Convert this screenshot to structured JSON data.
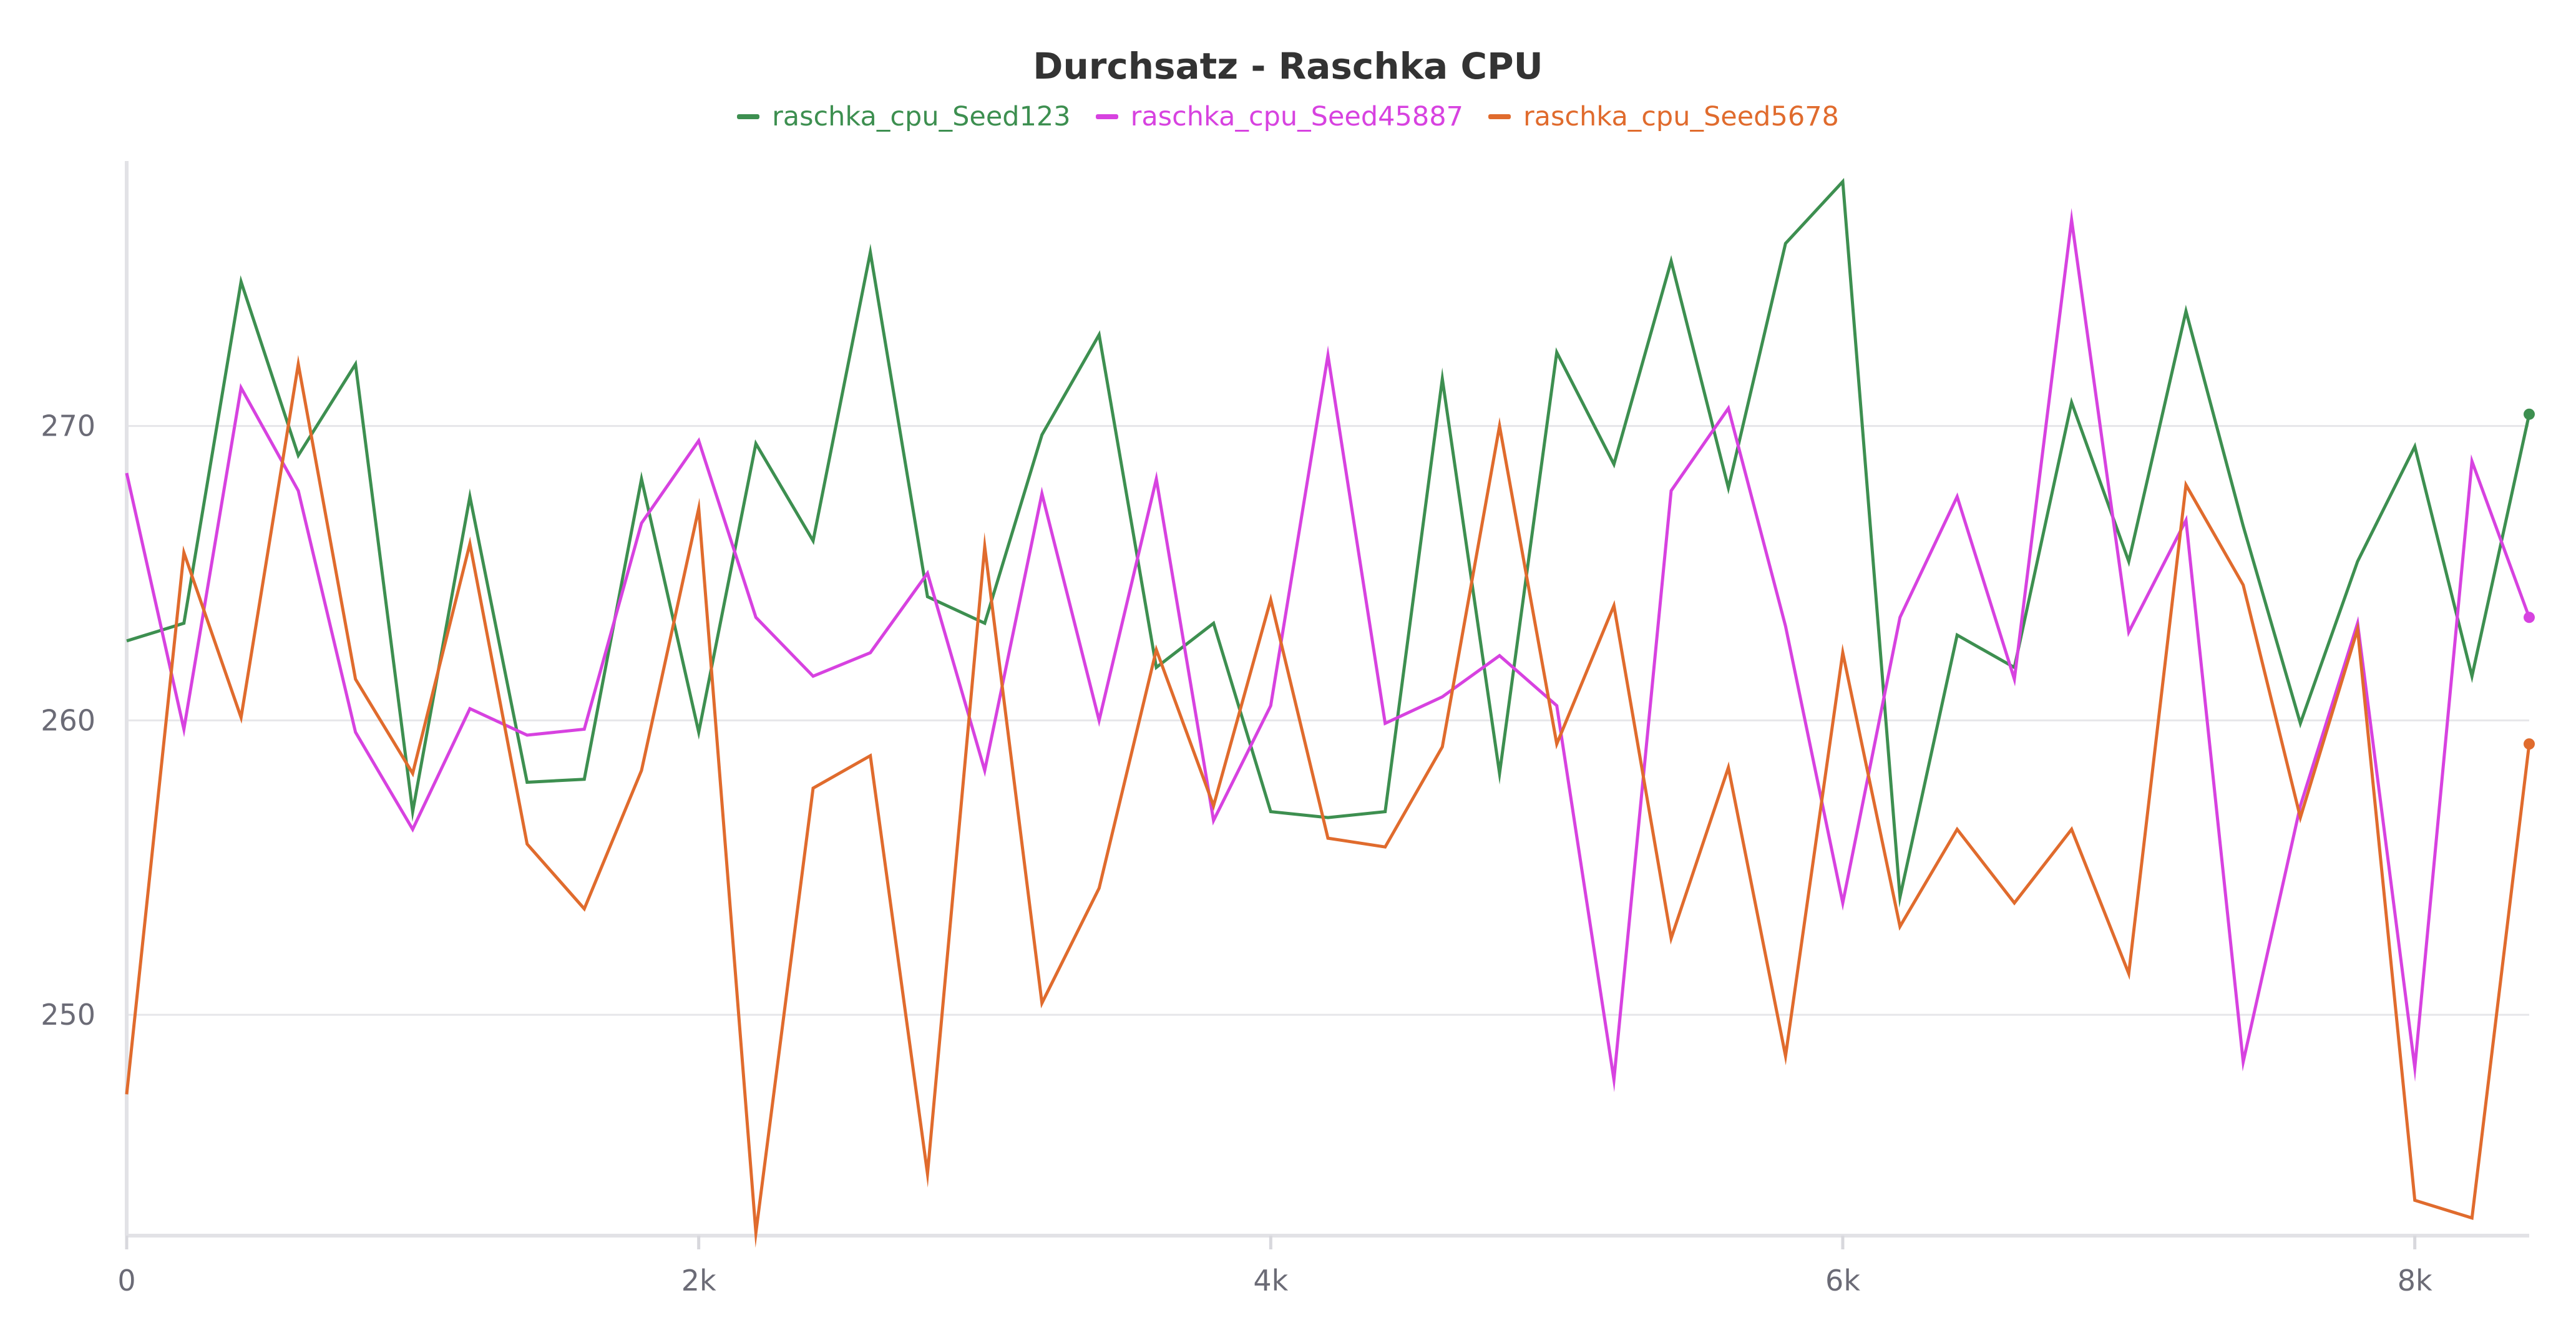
{
  "chart_data": {
    "type": "line",
    "title": "Durchsatz - Raschka CPU",
    "xlabel": "",
    "ylabel": "",
    "xlim": [
      0,
      8400
    ],
    "ylim": [
      242.5,
      279
    ],
    "x_ticks": [
      0,
      2000,
      4000,
      6000,
      8000
    ],
    "x_tick_labels": [
      "0",
      "2k",
      "4k",
      "6k",
      "8k"
    ],
    "y_ticks": [
      250,
      260,
      270
    ],
    "y_tick_labels": [
      "250",
      "260",
      "270"
    ],
    "grid": "horizontal",
    "legend_position": "top-center",
    "x": [
      0,
      200,
      400,
      600,
      800,
      1000,
      1200,
      1400,
      1600,
      1800,
      2000,
      2200,
      2400,
      2600,
      2800,
      3000,
      3200,
      3400,
      3600,
      3800,
      4000,
      4200,
      4400,
      4600,
      4800,
      5000,
      5200,
      5400,
      5600,
      5800,
      6000,
      6200,
      6400,
      6600,
      6800,
      7000,
      7200,
      7400,
      7600,
      7800,
      8000,
      8200,
      8400
    ],
    "series": [
      {
        "name": "raschka_cpu_Seed123",
        "color": "#3d8f50",
        "end_marker": true,
        "values": [
          262.7,
          263.3,
          274.9,
          269.0,
          272.1,
          256.9,
          267.6,
          257.9,
          258.0,
          268.2,
          259.6,
          269.4,
          266.1,
          275.9,
          264.2,
          263.3,
          269.7,
          273.1,
          261.8,
          263.3,
          256.9,
          256.7,
          256.9,
          271.6,
          258.2,
          272.5,
          268.7,
          275.6,
          267.9,
          276.2,
          278.3,
          254.0,
          262.9,
          261.8,
          270.8,
          265.4,
          273.9,
          266.6,
          259.9,
          265.4,
          269.3,
          261.5,
          270.4
        ]
      },
      {
        "name": "raschka_cpu_Seed45887",
        "color": "#d742e0",
        "end_marker": true,
        "values": [
          268.4,
          259.7,
          271.3,
          267.8,
          259.6,
          256.3,
          260.4,
          259.5,
          259.7,
          266.7,
          269.5,
          263.5,
          261.5,
          262.3,
          265.0,
          258.3,
          267.7,
          260.0,
          268.2,
          256.6,
          260.5,
          272.4,
          259.9,
          260.8,
          262.2,
          260.5,
          247.8,
          267.8,
          270.6,
          263.2,
          253.8,
          263.5,
          267.6,
          261.4,
          277.0,
          263.0,
          266.8,
          248.4,
          257.1,
          263.3,
          248.2,
          268.8,
          263.5
        ]
      },
      {
        "name": "raschka_cpu_Seed5678",
        "color": "#e06b2d",
        "end_marker": true,
        "values": [
          247.3,
          265.7,
          260.1,
          272.1,
          261.4,
          258.2,
          266.0,
          255.8,
          253.6,
          258.3,
          267.2,
          242.6,
          257.7,
          258.8,
          244.6,
          265.9,
          250.4,
          254.3,
          262.4,
          257.1,
          264.1,
          256.0,
          255.7,
          259.1,
          270.0,
          259.2,
          263.9,
          252.6,
          258.4,
          248.6,
          262.3,
          253.0,
          256.3,
          253.8,
          256.3,
          251.4,
          268.0,
          264.6,
          256.7,
          263.1,
          243.7,
          243.1,
          259.2
        ]
      }
    ]
  }
}
